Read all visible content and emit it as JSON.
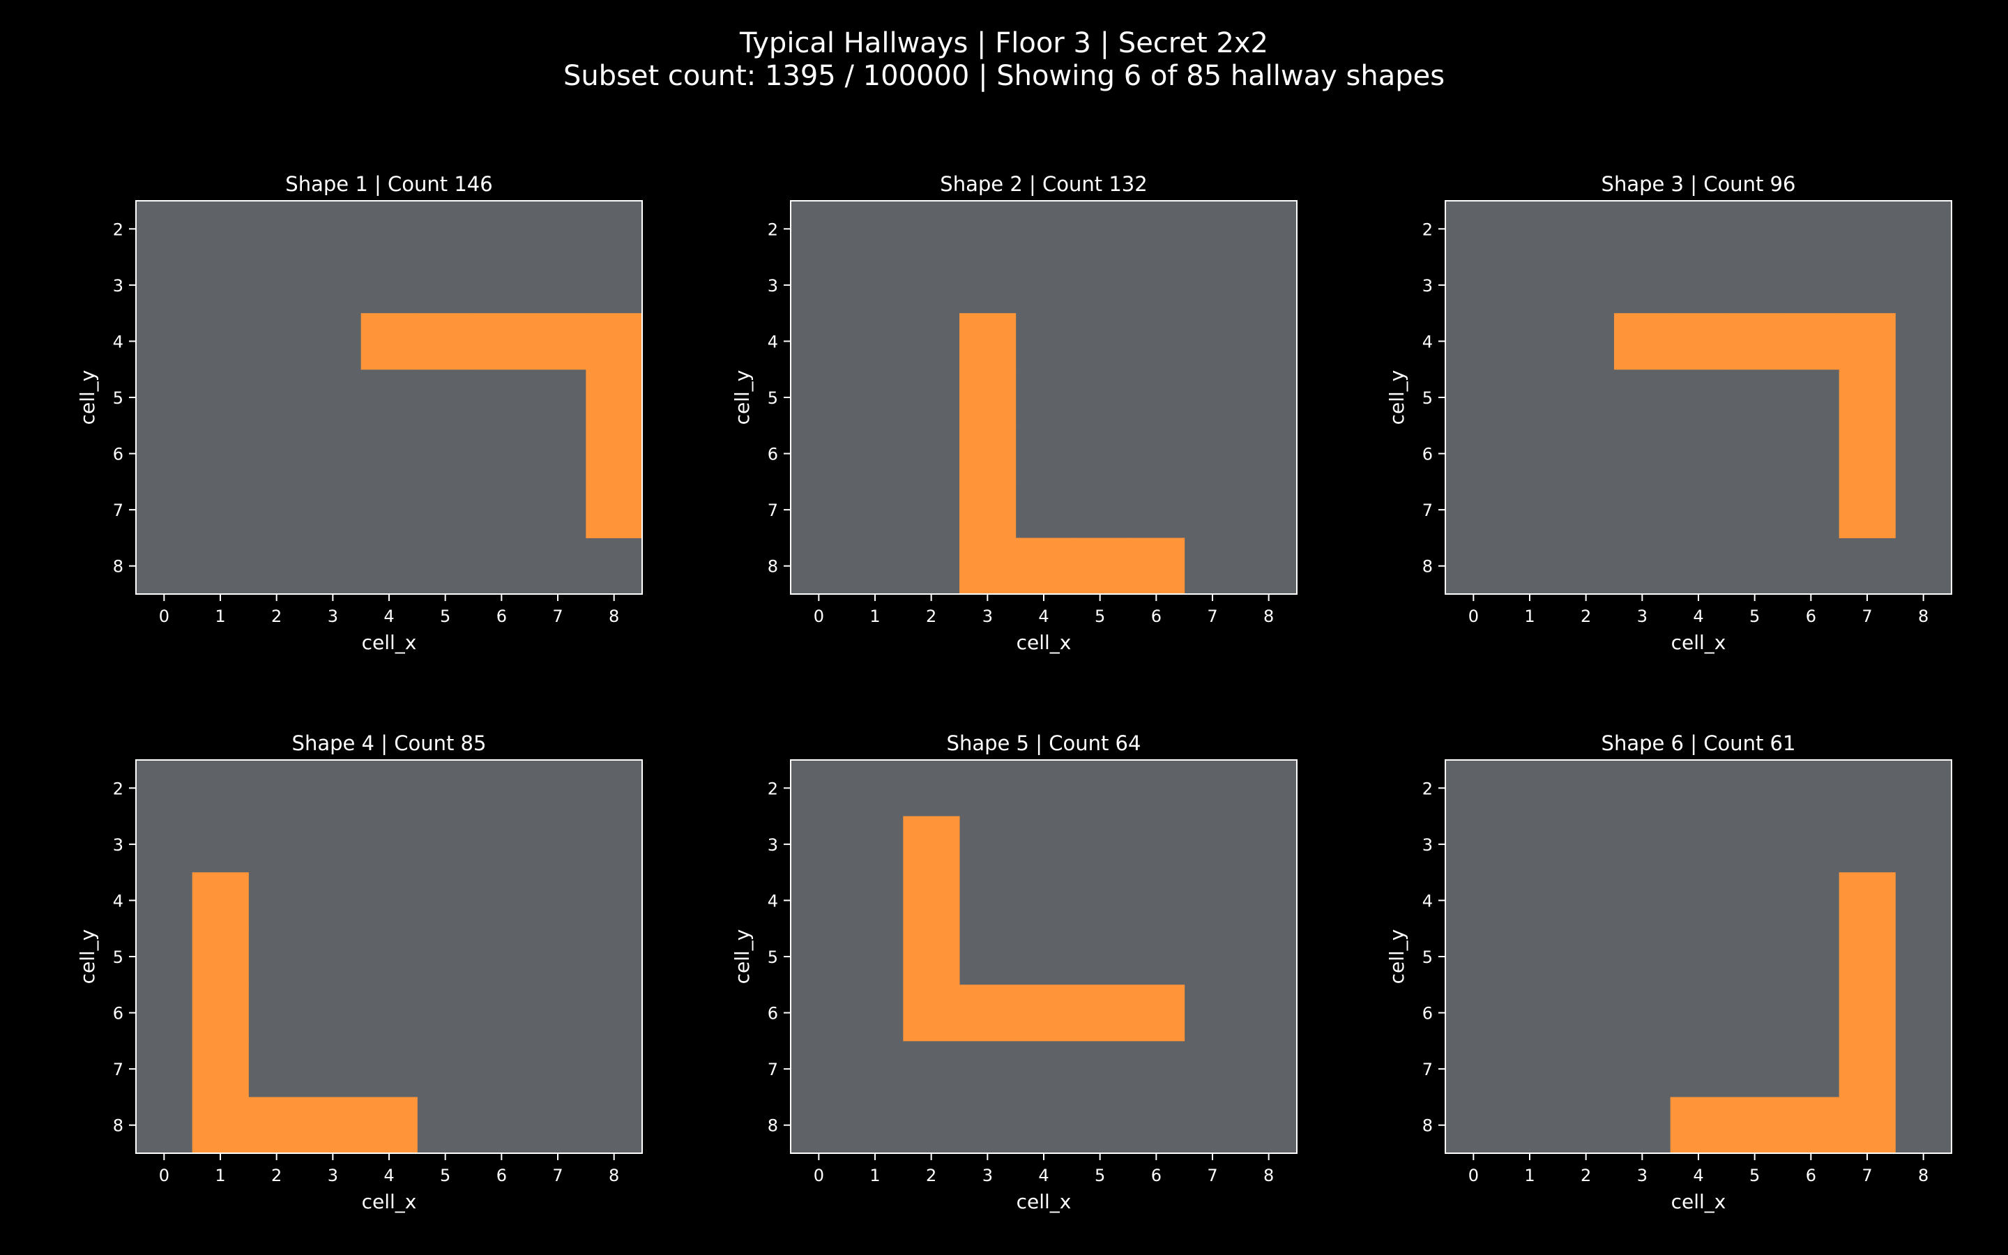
{
  "figure": {
    "title_line1": "Typical Hallways | Floor 3 | Secret 2x2",
    "title_line2": "Subset count: 1395 / 100000 | Showing 6 of 85 hallway shapes"
  },
  "colors": {
    "background": "#000000",
    "grid_fill": "#5f6368",
    "hallway": "#ff9438",
    "axes_edge": "#ffffff",
    "text": "#ffffff"
  },
  "chart_data": [
    {
      "type": "heatmap",
      "title": "Shape 1 | Count 146",
      "xlabel": "cell_x",
      "ylabel": "cell_y",
      "x_ticks": [
        "0",
        "1",
        "2",
        "3",
        "4",
        "5",
        "6",
        "7",
        "8"
      ],
      "y_ticks": [
        "2",
        "3",
        "4",
        "5",
        "6",
        "7",
        "8"
      ],
      "xlim": [
        -0.5,
        8.5
      ],
      "ylim": [
        8.5,
        1.5
      ],
      "cells": [
        [
          4,
          4
        ],
        [
          5,
          4
        ],
        [
          6,
          4
        ],
        [
          7,
          4
        ],
        [
          8,
          4
        ],
        [
          8,
          5
        ],
        [
          8,
          6
        ],
        [
          8,
          7
        ]
      ]
    },
    {
      "type": "heatmap",
      "title": "Shape 2 | Count 132",
      "xlabel": "cell_x",
      "ylabel": "cell_y",
      "x_ticks": [
        "0",
        "1",
        "2",
        "3",
        "4",
        "5",
        "6",
        "7",
        "8"
      ],
      "y_ticks": [
        "2",
        "3",
        "4",
        "5",
        "6",
        "7",
        "8"
      ],
      "xlim": [
        -0.5,
        8.5
      ],
      "ylim": [
        8.5,
        1.5
      ],
      "cells": [
        [
          3,
          4
        ],
        [
          3,
          5
        ],
        [
          3,
          6
        ],
        [
          3,
          7
        ],
        [
          3,
          8
        ],
        [
          4,
          8
        ],
        [
          5,
          8
        ],
        [
          6,
          8
        ]
      ]
    },
    {
      "type": "heatmap",
      "title": "Shape 3 | Count 96",
      "xlabel": "cell_x",
      "ylabel": "cell_y",
      "x_ticks": [
        "0",
        "1",
        "2",
        "3",
        "4",
        "5",
        "6",
        "7",
        "8"
      ],
      "y_ticks": [
        "2",
        "3",
        "4",
        "5",
        "6",
        "7",
        "8"
      ],
      "xlim": [
        -0.5,
        8.5
      ],
      "ylim": [
        8.5,
        1.5
      ],
      "cells": [
        [
          3,
          4
        ],
        [
          4,
          4
        ],
        [
          5,
          4
        ],
        [
          6,
          4
        ],
        [
          7,
          4
        ],
        [
          7,
          5
        ],
        [
          7,
          6
        ],
        [
          7,
          7
        ]
      ]
    },
    {
      "type": "heatmap",
      "title": "Shape 4 | Count 85",
      "xlabel": "cell_x",
      "ylabel": "cell_y",
      "x_ticks": [
        "0",
        "1",
        "2",
        "3",
        "4",
        "5",
        "6",
        "7",
        "8"
      ],
      "y_ticks": [
        "2",
        "3",
        "4",
        "5",
        "6",
        "7",
        "8"
      ],
      "xlim": [
        -0.5,
        8.5
      ],
      "ylim": [
        8.5,
        1.5
      ],
      "cells": [
        [
          1,
          4
        ],
        [
          1,
          5
        ],
        [
          1,
          6
        ],
        [
          1,
          7
        ],
        [
          1,
          8
        ],
        [
          2,
          8
        ],
        [
          3,
          8
        ],
        [
          4,
          8
        ]
      ]
    },
    {
      "type": "heatmap",
      "title": "Shape 5 | Count 64",
      "xlabel": "cell_x",
      "ylabel": "cell_y",
      "x_ticks": [
        "0",
        "1",
        "2",
        "3",
        "4",
        "5",
        "6",
        "7",
        "8"
      ],
      "y_ticks": [
        "2",
        "3",
        "4",
        "5",
        "6",
        "7",
        "8"
      ],
      "xlim": [
        -0.5,
        8.5
      ],
      "ylim": [
        8.5,
        1.5
      ],
      "cells": [
        [
          2,
          3
        ],
        [
          2,
          4
        ],
        [
          2,
          5
        ],
        [
          2,
          6
        ],
        [
          3,
          6
        ],
        [
          4,
          6
        ],
        [
          5,
          6
        ],
        [
          6,
          6
        ]
      ]
    },
    {
      "type": "heatmap",
      "title": "Shape 6 | Count 61",
      "xlabel": "cell_x",
      "ylabel": "cell_y",
      "x_ticks": [
        "0",
        "1",
        "2",
        "3",
        "4",
        "5",
        "6",
        "7",
        "8"
      ],
      "y_ticks": [
        "2",
        "3",
        "4",
        "5",
        "6",
        "7",
        "8"
      ],
      "xlim": [
        -0.5,
        8.5
      ],
      "ylim": [
        8.5,
        1.5
      ],
      "cells": [
        [
          7,
          4
        ],
        [
          7,
          5
        ],
        [
          7,
          6
        ],
        [
          7,
          7
        ],
        [
          7,
          8
        ],
        [
          6,
          8
        ],
        [
          5,
          8
        ],
        [
          4,
          8
        ]
      ]
    }
  ]
}
